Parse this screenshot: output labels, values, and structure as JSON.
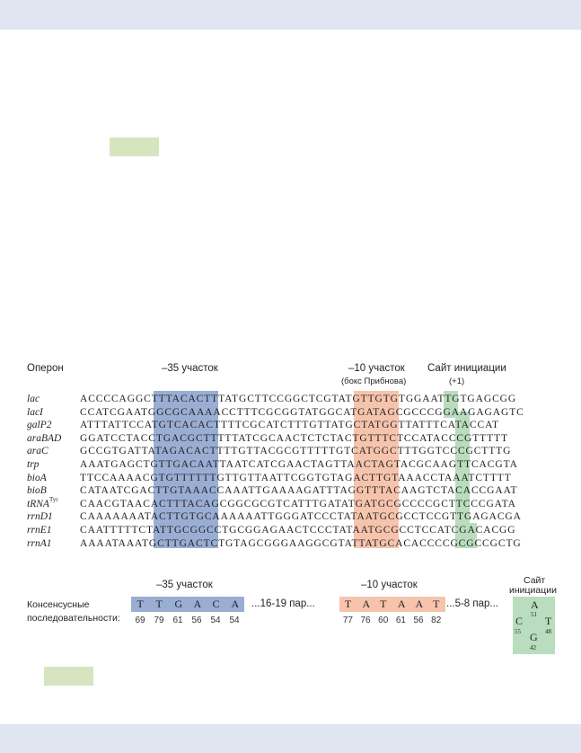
{
  "headers": {
    "operon": "Оперон",
    "region35": "–35 участок",
    "region10": "–10 участок",
    "pribnow": "(бокс Прибнова)",
    "start_site": "Сайт инициации",
    "plus1": "(+1)"
  },
  "rows": [
    {
      "name": "lac",
      "seq": "ACCCCAGGCTTTACACTTTATGCTTCCGGCTCGTATGTTGTGTGGAATTGTGAGCGG"
    },
    {
      "name": "lacI",
      "seq": "CCATCGAATGGCGCAAAACCTTTCGCGGTATGGCATGATAGCGCCCGGAAGAGAGTC"
    },
    {
      "name": "galP2",
      "seq": "ATTTATTCCATGTCACACTTTTCGCATCTTTGTTATGCTATGGTTATTTCATACCAT"
    },
    {
      "name": "araBAD",
      "seq": "GGATCCTACCTGACGCTTTTTATCGCAACTCTCTACTGTTTCTCCATACCCGTTTTT"
    },
    {
      "name": "araC",
      "seq": "GCCGTGATTATAGACACTTTTGTTACGCGTTTTTGTCATGGCTTTGGTCCCGCTTTG"
    },
    {
      "name": "trp",
      "seq": "AAATGAGCTGTTGACAATTAATCATCGAACTAGTTAACTAGTACGCAAGTTCACGTA"
    },
    {
      "name": "bioA",
      "seq": "TTCCAAAACGTGTTTTTTGTTGTTAATTCGGTGTAGACTTGTAAACCTAAATCTTTT"
    },
    {
      "name": "bioB",
      "seq": "CATAATCGACTTGTAAACCAAATTGAAAAGATTTAGGTTTACAAGTCTACACCGAAT"
    },
    {
      "name": "tRNA",
      "sup": "Tyr",
      "seq": "CAACGTAACACTTTACAGCGGCGCGTCATTTGATATGATGCGCCCCGCTTCCCGATA"
    },
    {
      "name": "rrnD1",
      "seq": "CAAAAAAATACTTGTGCAAAAAATTGGGATCCCTATAATGCGCCTCCGTTGAGACGA"
    },
    {
      "name": "rrnE1",
      "seq": "CAATTTTTCTATTGCGGCCTGCGGAGAACTCCCTATAATGCGCCTCCATCGACACGG"
    },
    {
      "name": "rrnA1",
      "seq": "AAAATAAATGCTTGACTCTGTAGCGGGAAGGCGTATTATGCACACCCCGCGCCGCTG"
    }
  ],
  "consensus": {
    "label_line1": "Консенсусные",
    "label_line2": "последовательности:",
    "region35": "–35 участок",
    "region10": "–10 участок",
    "start_line1": "Сайт",
    "start_line2": "инициации",
    "box35": {
      "bases": [
        "T",
        "T",
        "G",
        "A",
        "C",
        "A"
      ],
      "percents": [
        "69",
        "79",
        "61",
        "56",
        "54",
        "54"
      ]
    },
    "gap1": "...16-19 пар...",
    "box10": {
      "bases": [
        "T",
        "A",
        "T",
        "A",
        "A",
        "T"
      ],
      "percents": [
        "77",
        "76",
        "60",
        "61",
        "56",
        "82"
      ]
    },
    "gap2": "...5-8 пар...",
    "start": {
      "A": "A",
      "A_pct": "51",
      "C": "C",
      "C_pct": "55",
      "T": "T",
      "T_pct": "48",
      "G": "G",
      "G_pct": "42"
    }
  },
  "colors": {
    "region35": "#9aaed4",
    "region10": "#f6c4ad",
    "start": "#b9ddbe",
    "top_band": "#dfe6f1",
    "tag": "#d6e5c0"
  }
}
